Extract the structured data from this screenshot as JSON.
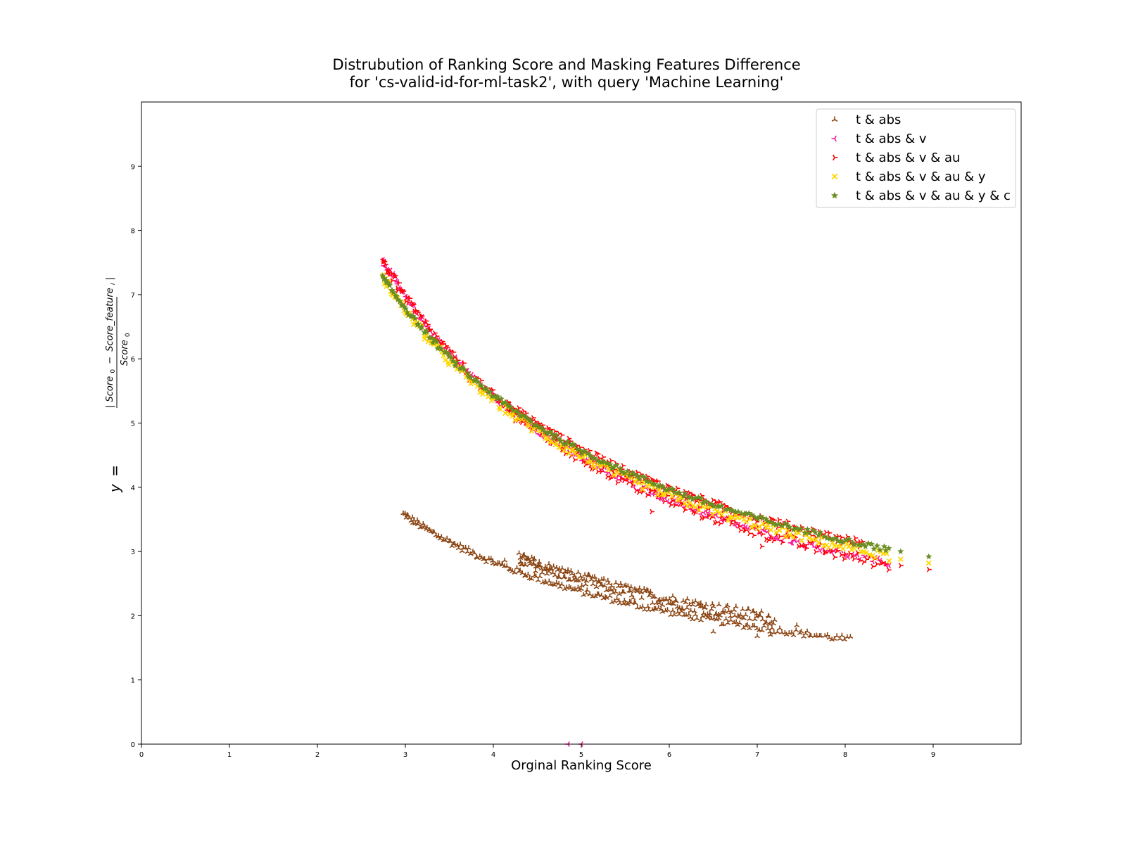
{
  "chart_data": {
    "type": "scatter",
    "title_lines": [
      "Distrubution of Ranking Score and Masking Features Difference",
      "for 'cs-valid-id-for-ml-task2', with query 'Machine Learning'"
    ],
    "xlabel": "Orginal Ranking Score",
    "ylabel": "y = |Score0 − Score_featurei| / Score0",
    "ylabel_parts": {
      "y": "y",
      "eq": "=",
      "num_bar_left": "|",
      "num_a": "Score",
      "num_a_sub": "0",
      "minus": "−",
      "num_b": "Score_feature",
      "num_b_sub": "i",
      "num_bar_right": "|",
      "den": "Score",
      "den_sub": "0"
    },
    "xlim": [
      0,
      10
    ],
    "ylim": [
      0,
      10
    ],
    "xticks": [
      0,
      1,
      2,
      3,
      4,
      5,
      6,
      7,
      8,
      9
    ],
    "yticks": [
      0,
      1,
      2,
      3,
      4,
      5,
      6,
      7,
      8,
      9
    ],
    "grid": false,
    "legend_position": "top-right",
    "series": [
      {
        "name": "t & abs",
        "marker": "tri_up",
        "color": "#8B4513",
        "curves": [
          {
            "x_start": 2.98,
            "x_end": 8.05,
            "y_start": 3.58,
            "y_end": 1.63,
            "spread": 0.05
          },
          {
            "x_start": 4.3,
            "x_end": 7.2,
            "y_start": 2.88,
            "y_end": 1.95,
            "spread": 0.1
          }
        ],
        "outliers": [
          {
            "x": 4.13,
            "y": 2.86
          },
          {
            "x": 5.5,
            "y": 2.2
          },
          {
            "x": 6.05,
            "y": 2.18
          },
          {
            "x": 6.4,
            "y": 2.12
          },
          {
            "x": 6.5,
            "y": 1.75
          },
          {
            "x": 7.0,
            "y": 1.68
          },
          {
            "x": 7.15,
            "y": 1.7
          },
          {
            "x": 7.45,
            "y": 1.85
          },
          {
            "x": 7.55,
            "y": 1.72
          }
        ]
      },
      {
        "name": "t & abs & v",
        "marker": "tri_left",
        "color": "#FF1493",
        "curves": [
          {
            "x_start": 2.75,
            "x_end": 8.5,
            "y_start": 7.52,
            "y_end": 2.81,
            "spread": 0.05
          }
        ],
        "outliers": [
          {
            "x": 4.85,
            "y": 0.0
          },
          {
            "x": 5.0,
            "y": 0.0
          },
          {
            "x": 4.18,
            "y": 5.28
          },
          {
            "x": 5.45,
            "y": 4.25
          },
          {
            "x": 6.2,
            "y": 3.88
          }
        ]
      },
      {
        "name": "t & abs & v & au",
        "marker": "tri_right",
        "color": "#FF0000",
        "curves": [
          {
            "x_start": 2.75,
            "x_end": 8.5,
            "y_start": 7.52,
            "y_end": 2.79,
            "spread": 0.09
          },
          {
            "x_start": 4.15,
            "x_end": 8.2,
            "y_start": 5.3,
            "y_end": 3.12,
            "spread": 0.07
          }
        ],
        "outliers": [
          {
            "x": 4.17,
            "y": 5.32
          },
          {
            "x": 5.46,
            "y": 4.28
          },
          {
            "x": 6.17,
            "y": 3.9
          },
          {
            "x": 8.63,
            "y": 2.78
          },
          {
            "x": 8.95,
            "y": 2.72
          },
          {
            "x": 5.8,
            "y": 3.62
          },
          {
            "x": 7.05,
            "y": 3.08
          }
        ]
      },
      {
        "name": "t & abs & v & au & y",
        "marker": "x",
        "color": "#FFD700",
        "curves": [
          {
            "x_start": 2.75,
            "x_end": 8.5,
            "y_start": 7.25,
            "y_end": 2.92,
            "spread": 0.07
          }
        ],
        "outliers": [
          {
            "x": 8.63,
            "y": 2.88
          },
          {
            "x": 8.95,
            "y": 2.82
          }
        ]
      },
      {
        "name": "t & abs & v & au & y & c",
        "marker": "star",
        "color": "#6B8E23",
        "curves": [
          {
            "x_start": 2.75,
            "x_end": 8.5,
            "y_start": 7.26,
            "y_end": 3.03,
            "spread": 0.04
          }
        ],
        "outliers": [
          {
            "x": 8.63,
            "y": 3.0
          },
          {
            "x": 8.95,
            "y": 2.92
          }
        ]
      }
    ]
  }
}
